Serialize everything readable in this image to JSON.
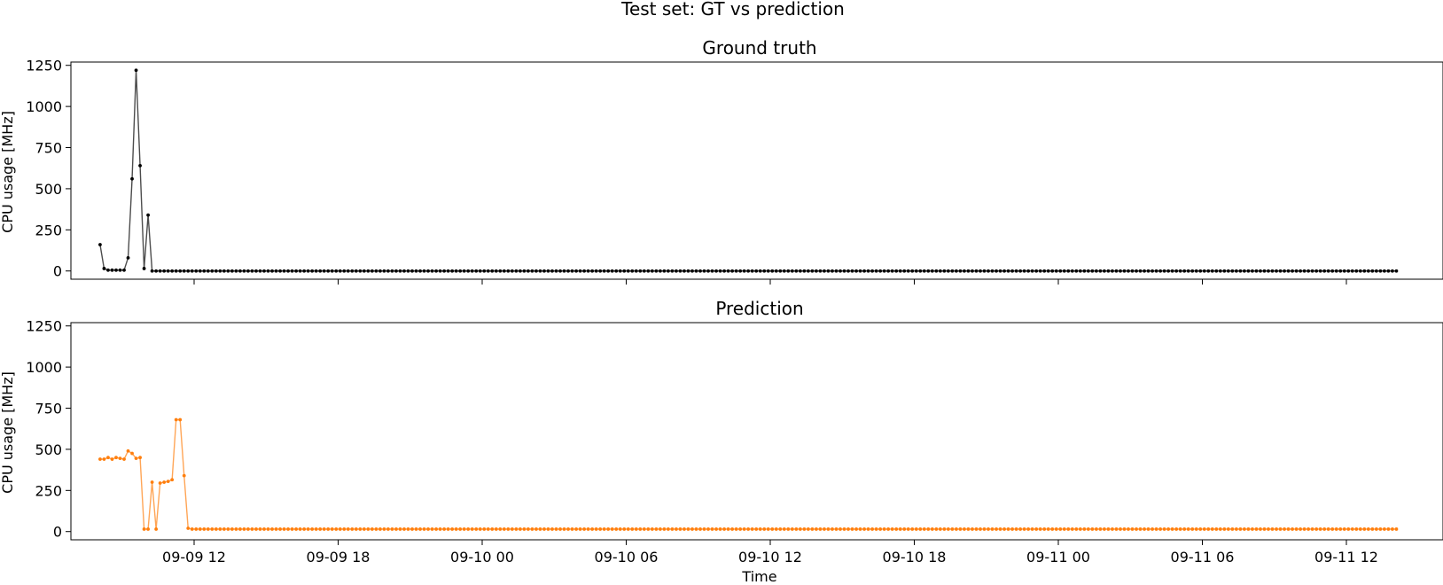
{
  "figure_title": "Test set: GT vs prediction",
  "chart_data": [
    {
      "type": "line",
      "title": "Ground truth",
      "xlabel": "",
      "ylabel": "CPU usage [MHz]",
      "x_start": "2024-09-09T08:05:00",
      "x_step_minutes": 10,
      "point_count": 325,
      "ylim": [
        -50,
        1270
      ],
      "yticks": [
        0,
        250,
        500,
        750,
        1000,
        1250
      ],
      "xticks": [
        "09-09 12",
        "09-09 18",
        "09-10 00",
        "09-10 06",
        "09-10 12",
        "09-10 18",
        "09-11 00",
        "09-11 06",
        "09-11 12"
      ],
      "x_tick_labels_visible": false,
      "grid": false,
      "series": [
        {
          "color": "#000000",
          "marker": "dot",
          "initial_values": [
            160,
            15,
            5,
            5,
            5,
            5,
            5,
            80,
            560,
            1220,
            640,
            15,
            340
          ],
          "tail_value": 0
        }
      ]
    },
    {
      "type": "line",
      "title": "Prediction",
      "xlabel": "Time",
      "ylabel": "CPU usage [MHz]",
      "x_start": "2024-09-09T08:05:00",
      "x_step_minutes": 10,
      "point_count": 325,
      "ylim": [
        -50,
        1270
      ],
      "yticks": [
        0,
        250,
        500,
        750,
        1000,
        1250
      ],
      "xticks": [
        "09-09 12",
        "09-09 18",
        "09-10 00",
        "09-10 06",
        "09-10 12",
        "09-10 18",
        "09-11 00",
        "09-11 06",
        "09-11 12"
      ],
      "x_tick_labels_visible": true,
      "grid": false,
      "series": [
        {
          "color": "#ff7f0e",
          "marker": "dot",
          "initial_values": [
            440,
            440,
            450,
            440,
            450,
            445,
            440,
            490,
            475,
            445,
            450,
            15,
            15,
            300,
            15,
            295,
            300,
            305,
            315,
            680,
            680,
            340,
            20
          ],
          "tail_value": 15
        }
      ]
    }
  ]
}
